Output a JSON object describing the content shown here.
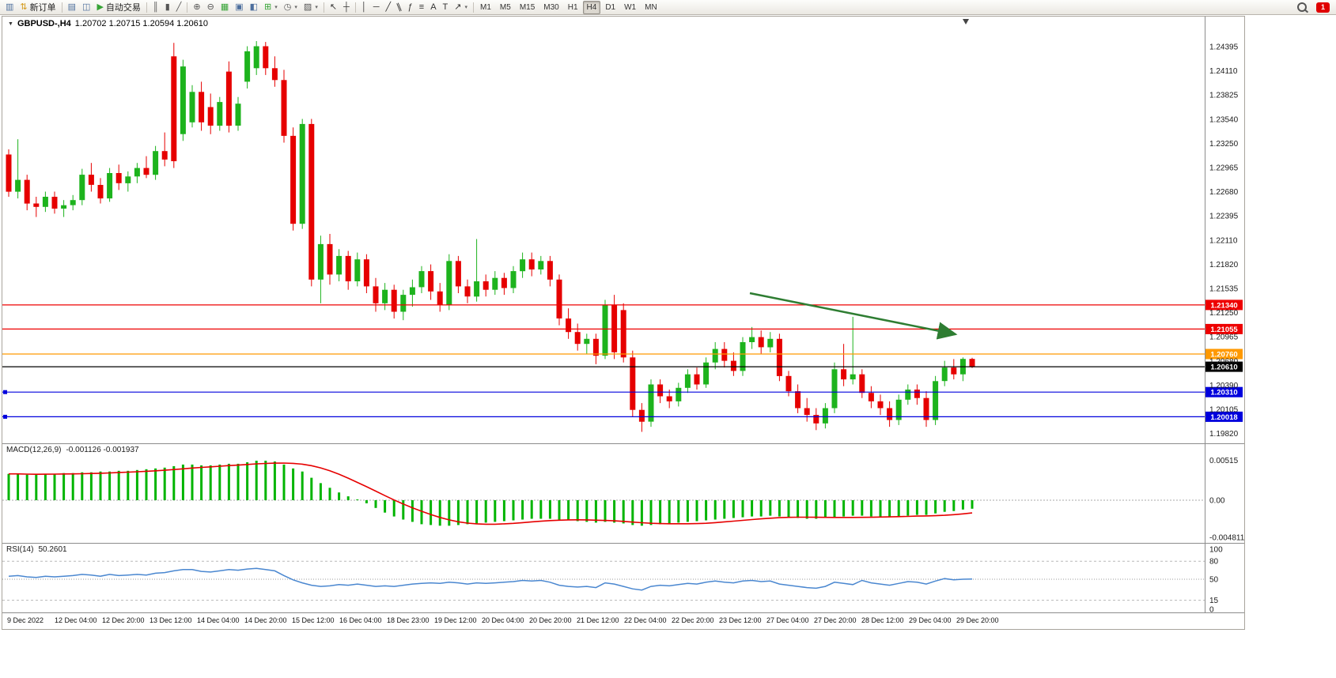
{
  "toolbar": {
    "badge_text": "1",
    "items": [
      {
        "type": "btn",
        "name": "new-chart",
        "glyph": "▥",
        "color": "#4d6f9d"
      },
      {
        "type": "btn",
        "name": "new-order",
        "glyph": "⇅",
        "color": "#d49a1a",
        "label": "新订单"
      },
      {
        "type": "sep"
      },
      {
        "type": "btn",
        "name": "profiles",
        "glyph": "▤",
        "color": "#4d6f9d"
      },
      {
        "type": "btn",
        "name": "alerts",
        "glyph": "◫",
        "color": "#4d6f9d"
      },
      {
        "type": "btn",
        "name": "autotrading",
        "glyph": "▶",
        "color": "#36a436",
        "label": "自动交易"
      },
      {
        "type": "sep"
      },
      {
        "type": "btn",
        "name": "chart-bars",
        "glyph": "║",
        "color": "#555555"
      },
      {
        "type": "btn",
        "name": "chart-candles",
        "glyph": "▮",
        "color": "#555555"
      },
      {
        "type": "btn",
        "name": "chart-line",
        "glyph": "╱",
        "color": "#555555"
      },
      {
        "type": "sep"
      },
      {
        "type": "btn",
        "name": "zoom-in",
        "glyph": "⊕",
        "color": "#555555"
      },
      {
        "type": "btn",
        "name": "zoom-out",
        "glyph": "⊖",
        "color": "#555555"
      },
      {
        "type": "btn",
        "name": "tile-windows",
        "glyph": "▦",
        "color": "#36a436"
      },
      {
        "type": "btn",
        "name": "cascade-windows",
        "glyph": "▣",
        "color": "#4d6f9d"
      },
      {
        "type": "btn",
        "name": "arrange-windows",
        "glyph": "◧",
        "color": "#4d6f9d"
      },
      {
        "type": "btn",
        "name": "indicators",
        "glyph": "⊞",
        "color": "#36a436",
        "dropdown": true
      },
      {
        "type": "btn",
        "name": "periods",
        "glyph": "◷",
        "color": "#555555",
        "dropdown": true
      },
      {
        "type": "btn",
        "name": "templates",
        "glyph": "▨",
        "color": "#555555",
        "dropdown": true
      },
      {
        "type": "sep"
      },
      {
        "type": "btn",
        "name": "cursor",
        "glyph": "↖",
        "color": "#333333"
      },
      {
        "type": "btn",
        "name": "crosshair",
        "glyph": "┼",
        "color": "#333333"
      },
      {
        "type": "sep"
      },
      {
        "type": "btn",
        "name": "vertical-line",
        "glyph": "│",
        "color": "#333333"
      },
      {
        "type": "btn",
        "name": "horizontal-line",
        "glyph": "─",
        "color": "#333333"
      },
      {
        "type": "btn",
        "name": "trendline",
        "glyph": "╱",
        "color": "#333333"
      },
      {
        "type": "btn",
        "name": "channel",
        "glyph": "∥",
        "color": "#333333",
        "tilt": true
      },
      {
        "type": "btn",
        "name": "fibonacci",
        "glyph": "ƒ",
        "color": "#333333"
      },
      {
        "type": "btn",
        "name": "shapes",
        "glyph": "≡",
        "color": "#333333"
      },
      {
        "type": "btn",
        "name": "text",
        "glyph": "A",
        "color": "#333333"
      },
      {
        "type": "btn",
        "name": "text-label",
        "glyph": "T",
        "color": "#333333"
      },
      {
        "type": "btn",
        "name": "arrows",
        "glyph": "↗",
        "color": "#333333",
        "dropdown": true
      },
      {
        "type": "sep"
      }
    ],
    "timeframes": [
      "M1",
      "M5",
      "M15",
      "M30",
      "H1",
      "H4",
      "D1",
      "W1",
      "MN"
    ],
    "active_timeframe": "H4"
  },
  "chart": {
    "symbol": "GBPUSD-,H4",
    "ohlc": "1.20702 1.20715 1.20594 1.20610",
    "price_axis_ticks": [
      "1.24395",
      "1.24110",
      "1.23825",
      "1.23540",
      "1.23250",
      "1.22965",
      "1.22680",
      "1.22395",
      "1.22110",
      "1.21820",
      "1.21535",
      "1.21250",
      "1.20965",
      "1.20680",
      "1.20390",
      "1.20105",
      "1.19820"
    ],
    "date_labels": [
      "9 Dec 2022",
      "12 Dec 04:00",
      "12 Dec 20:00",
      "13 Dec 12:00",
      "14 Dec 04:00",
      "14 Dec 20:00",
      "15 Dec 12:00",
      "16 Dec 04:00",
      "18 Dec 23:00",
      "19 Dec 12:00",
      "20 Dec 04:00",
      "20 Dec 20:00",
      "21 Dec 12:00",
      "22 Dec 04:00",
      "22 Dec 20:00",
      "23 Dec 12:00",
      "27 Dec 04:00",
      "27 Dec 20:00",
      "28 Dec 12:00",
      "29 Dec 04:00",
      "29 Dec 20:00"
    ],
    "levels": [
      {
        "label": "1.21340",
        "value": 1.2134,
        "color": "#ee0000",
        "handles": false
      },
      {
        "label": "1.21055",
        "value": 1.21055,
        "color": "#ee0000",
        "handles": false
      },
      {
        "label": "1.20760",
        "value": 1.2076,
        "color": "#ff9900",
        "handles": false
      },
      {
        "label": "1.20610",
        "value": 1.2061,
        "color": "#000000",
        "handles": false
      },
      {
        "label": "1.20310",
        "value": 1.2031,
        "color": "#0000dd",
        "handles": true
      },
      {
        "label": "1.20018",
        "value": 1.20018,
        "color": "#0000dd",
        "handles": true
      }
    ],
    "trend_arrow_color": "#2e7d32"
  },
  "indicators": {
    "macd": {
      "label": "MACD(12,26,9)",
      "values": "-0.001126 -0.001937",
      "axis": [
        {
          "label": "0.00515",
          "value": 0.00515
        },
        {
          "label": "0.00",
          "value": 0
        },
        {
          "label": "-0.004811",
          "value": -0.004811
        }
      ],
      "bar_color": "#00b400",
      "signal_color": "#e60000"
    },
    "rsi": {
      "label": "RSI(14)",
      "value": "50.2601",
      "axis": [
        {
          "label": "100",
          "value": 100
        },
        {
          "label": "80",
          "value": 80
        },
        {
          "label": "50",
          "value": 50
        },
        {
          "label": "15",
          "value": 15
        },
        {
          "label": "0",
          "value": 0
        }
      ],
      "dashed_levels": [
        80,
        15
      ],
      "dotted_levels": [
        50
      ],
      "line_color": "#4a87d0"
    }
  },
  "chart_data": {
    "type": "candlestick",
    "symbol": "GBPUSD-",
    "timeframe": "H4",
    "up_color": "#1db31d",
    "down_color": "#e60000",
    "candles": [
      [
        1.2312,
        1.2318,
        1.2262,
        1.2268
      ],
      [
        1.2268,
        1.233,
        1.226,
        1.2282
      ],
      [
        1.2282,
        1.2288,
        1.2246,
        1.2254
      ],
      [
        1.2254,
        1.2262,
        1.2238,
        1.225
      ],
      [
        1.225,
        1.2268,
        1.2244,
        1.2262
      ],
      [
        1.2262,
        1.2268,
        1.2242,
        1.2248
      ],
      [
        1.2248,
        1.2258,
        1.2238,
        1.2252
      ],
      [
        1.2252,
        1.2264,
        1.2246,
        1.2258
      ],
      [
        1.2258,
        1.2295,
        1.2252,
        1.2288
      ],
      [
        1.2288,
        1.2302,
        1.2268,
        1.2276
      ],
      [
        1.2276,
        1.2284,
        1.2254,
        1.226
      ],
      [
        1.226,
        1.2296,
        1.2256,
        1.229
      ],
      [
        1.229,
        1.23,
        1.227,
        1.2278
      ],
      [
        1.2278,
        1.2292,
        1.2268,
        1.2286
      ],
      [
        1.2286,
        1.2302,
        1.2278,
        1.2296
      ],
      [
        1.2296,
        1.231,
        1.2284,
        1.2288
      ],
      [
        1.2288,
        1.2322,
        1.2282,
        1.2316
      ],
      [
        1.2316,
        1.2338,
        1.2298,
        1.2306
      ],
      [
        1.2428,
        1.2444,
        1.2296,
        1.2304
      ],
      [
        1.2336,
        1.2424,
        1.2328,
        1.2416
      ],
      [
        1.235,
        1.2394,
        1.2344,
        1.2386
      ],
      [
        1.2386,
        1.2398,
        1.234,
        1.235
      ],
      [
        1.2368,
        1.2384,
        1.2336,
        1.2346
      ],
      [
        1.2346,
        1.238,
        1.234,
        1.2374
      ],
      [
        1.241,
        1.2422,
        1.2338,
        1.2346
      ],
      [
        1.2346,
        1.238,
        1.234,
        1.2372
      ],
      [
        1.2398,
        1.244,
        1.239,
        1.2434
      ],
      [
        1.2414,
        1.2446,
        1.2406,
        1.244
      ],
      [
        1.244,
        1.2445,
        1.2406,
        1.2414
      ],
      [
        1.2414,
        1.2428,
        1.2392,
        1.24
      ],
      [
        1.24,
        1.2412,
        1.2326,
        1.2334
      ],
      [
        1.2334,
        1.2344,
        1.2222,
        1.223
      ],
      [
        1.223,
        1.2354,
        1.2224,
        1.2348
      ],
      [
        1.2348,
        1.2354,
        1.2156,
        1.2164
      ],
      [
        1.2164,
        1.2216,
        1.2136,
        1.2206
      ],
      [
        1.2206,
        1.2218,
        1.2158,
        1.217
      ],
      [
        1.217,
        1.22,
        1.2162,
        1.2192
      ],
      [
        1.2192,
        1.2198,
        1.2152,
        1.2162
      ],
      [
        1.2162,
        1.2196,
        1.2156,
        1.2188
      ],
      [
        1.2188,
        1.2194,
        1.2148,
        1.2156
      ],
      [
        1.2156,
        1.2166,
        1.2126,
        1.2136
      ],
      [
        1.2136,
        1.216,
        1.2128,
        1.2152
      ],
      [
        1.2152,
        1.2158,
        1.2118,
        1.2126
      ],
      [
        1.2126,
        1.2152,
        1.2116,
        1.2146
      ],
      [
        1.2146,
        1.2164,
        1.2132,
        1.2155
      ],
      [
        1.2155,
        1.218,
        1.2148,
        1.2174
      ],
      [
        1.2174,
        1.2182,
        1.214,
        1.215
      ],
      [
        1.215,
        1.216,
        1.2126,
        1.2134
      ],
      [
        1.2134,
        1.2194,
        1.2128,
        1.2186
      ],
      [
        1.2186,
        1.2192,
        1.2148,
        1.2156
      ],
      [
        1.2156,
        1.2164,
        1.2136,
        1.2144
      ],
      [
        1.2144,
        1.2212,
        1.2138,
        1.2162
      ],
      [
        1.2162,
        1.217,
        1.2144,
        1.2152
      ],
      [
        1.2152,
        1.2174,
        1.2146,
        1.2166
      ],
      [
        1.2166,
        1.2172,
        1.2146,
        1.2154
      ],
      [
        1.2154,
        1.218,
        1.2148,
        1.2174
      ],
      [
        1.2174,
        1.2196,
        1.2166,
        1.2188
      ],
      [
        1.2188,
        1.2196,
        1.2168,
        1.2176
      ],
      [
        1.2176,
        1.2192,
        1.217,
        1.2186
      ],
      [
        1.2186,
        1.2192,
        1.2156,
        1.2164
      ],
      [
        1.2164,
        1.217,
        1.211,
        1.2118
      ],
      [
        1.2118,
        1.213,
        1.2094,
        1.2102
      ],
      [
        1.2102,
        1.2112,
        1.208,
        1.2088
      ],
      [
        1.2088,
        1.21,
        1.2076,
        1.2094
      ],
      [
        1.2094,
        1.21,
        1.2064,
        1.2074
      ],
      [
        1.2074,
        1.214,
        1.207,
        1.2134
      ],
      [
        1.2134,
        1.2146,
        1.207,
        1.2078
      ],
      [
        1.2128,
        1.2136,
        1.2066,
        1.2072
      ],
      [
        1.2072,
        1.208,
        1.2002,
        1.201
      ],
      [
        1.201,
        1.2018,
        1.1984,
        1.1996
      ],
      [
        1.1996,
        1.2046,
        1.199,
        1.204
      ],
      [
        1.204,
        1.2046,
        1.2018,
        1.2026
      ],
      [
        1.2026,
        1.2034,
        1.2012,
        1.202
      ],
      [
        1.202,
        1.2042,
        1.2014,
        1.2036
      ],
      [
        1.2036,
        1.2058,
        1.203,
        1.2052
      ],
      [
        1.2052,
        1.206,
        1.2034,
        1.204
      ],
      [
        1.204,
        1.2072,
        1.2036,
        1.2066
      ],
      [
        1.2066,
        1.209,
        1.2058,
        1.2082
      ],
      [
        1.2082,
        1.209,
        1.206,
        1.2068
      ],
      [
        1.2068,
        1.2078,
        1.205,
        1.2056
      ],
      [
        1.2056,
        1.2096,
        1.205,
        1.209
      ],
      [
        1.209,
        1.2108,
        1.2082,
        1.2096
      ],
      [
        1.2096,
        1.2104,
        1.2076,
        1.2084
      ],
      [
        1.2084,
        1.2102,
        1.2078,
        1.2094
      ],
      [
        1.2094,
        1.21,
        1.2044,
        1.205
      ],
      [
        1.205,
        1.2056,
        1.2026,
        1.2032
      ],
      [
        1.2032,
        1.204,
        1.2006,
        1.2012
      ],
      [
        1.2012,
        1.2024,
        1.1996,
        1.2004
      ],
      [
        1.2004,
        1.2012,
        1.1986,
        1.1994
      ],
      [
        1.1994,
        1.2018,
        1.1988,
        1.2012
      ],
      [
        1.2012,
        1.2066,
        1.2006,
        1.2058
      ],
      [
        1.2058,
        1.2088,
        1.2038,
        1.2046
      ],
      [
        1.2046,
        1.212,
        1.204,
        1.2052
      ],
      [
        1.2052,
        1.2058,
        1.2024,
        1.203
      ],
      [
        1.203,
        1.2038,
        1.2012,
        1.202
      ],
      [
        1.202,
        1.2028,
        1.2004,
        1.2012
      ],
      [
        1.2012,
        1.202,
        1.199,
        1.1998
      ],
      [
        1.1998,
        1.2028,
        1.1992,
        1.2022
      ],
      [
        1.2022,
        1.204,
        1.2016,
        1.2034
      ],
      [
        1.2034,
        1.204,
        1.2016,
        1.2024
      ],
      [
        1.2024,
        1.2032,
        1.199,
        1.1998
      ],
      [
        1.1998,
        1.205,
        1.1992,
        1.2044
      ],
      [
        1.2044,
        1.2068,
        1.2038,
        1.206
      ],
      [
        1.206,
        1.207,
        1.2046,
        1.2052
      ],
      [
        1.2052,
        1.2072,
        1.2044,
        1.20702
      ],
      [
        1.20702,
        1.20715,
        1.20594,
        1.2061
      ]
    ],
    "macd_hist": [
      0.0034,
      0.0034,
      0.0033,
      0.0033,
      0.0034,
      0.0034,
      0.0035,
      0.0035,
      0.0036,
      0.0036,
      0.0037,
      0.0037,
      0.0038,
      0.0038,
      0.0039,
      0.004,
      0.0041,
      0.0042,
      0.0044,
      0.0046,
      0.0046,
      0.0045,
      0.0045,
      0.0046,
      0.0047,
      0.0047,
      0.0049,
      0.0051,
      0.0051,
      0.005,
      0.0046,
      0.0041,
      0.0037,
      0.0029,
      0.0022,
      0.0016,
      0.001,
      0.0005,
      0.0001,
      -0.0004,
      -0.001,
      -0.0016,
      -0.0021,
      -0.0025,
      -0.0028,
      -0.0031,
      -0.0032,
      -0.0033,
      -0.0033,
      -0.0032,
      -0.0031,
      -0.003,
      -0.0029,
      -0.0028,
      -0.0027,
      -0.0026,
      -0.0025,
      -0.0024,
      -0.0024,
      -0.0024,
      -0.0025,
      -0.0026,
      -0.0027,
      -0.0028,
      -0.0029,
      -0.0028,
      -0.0029,
      -0.003,
      -0.0032,
      -0.0033,
      -0.0032,
      -0.0031,
      -0.003,
      -0.0029,
      -0.0028,
      -0.0027,
      -0.0026,
      -0.0025,
      -0.0024,
      -0.0023,
      -0.0022,
      -0.0021,
      -0.0021,
      -0.002,
      -0.0021,
      -0.0022,
      -0.0023,
      -0.0024,
      -0.0024,
      -0.0023,
      -0.0022,
      -0.0021,
      -0.002,
      -0.002,
      -0.0021,
      -0.0021,
      -0.0022,
      -0.0021,
      -0.002,
      -0.0019,
      -0.0019,
      -0.0017,
      -0.0015,
      -0.0014,
      -0.0012,
      -0.0011
    ],
    "rsi_line": [
      55,
      56,
      54,
      53,
      55,
      54,
      55,
      56,
      58,
      57,
      55,
      58,
      56,
      57,
      58,
      57,
      60,
      61,
      64,
      66,
      66,
      63,
      62,
      64,
      66,
      65,
      67,
      68,
      66,
      64,
      56,
      49,
      44,
      40,
      38,
      39,
      41,
      40,
      42,
      40,
      38,
      39,
      38,
      40,
      42,
      43,
      44,
      43,
      45,
      44,
      42,
      44,
      43,
      44,
      45,
      46,
      48,
      47,
      48,
      45,
      40,
      38,
      37,
      38,
      36,
      44,
      42,
      38,
      34,
      32,
      38,
      40,
      39,
      41,
      43,
      42,
      45,
      47,
      45,
      44,
      47,
      48,
      46,
      47,
      42,
      40,
      38,
      36,
      35,
      38,
      45,
      43,
      41,
      48,
      44,
      42,
      40,
      43,
      46,
      45,
      42,
      47,
      51,
      49,
      50,
      50.26
    ]
  }
}
